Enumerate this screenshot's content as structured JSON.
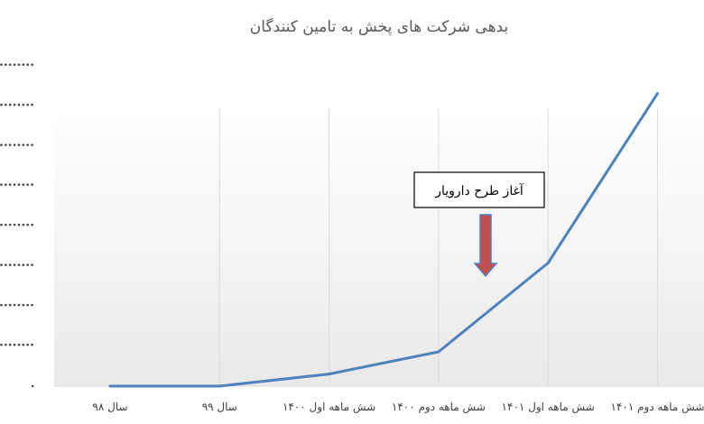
{
  "chart_data": {
    "type": "line",
    "title": "بدهی شرکت های پخش به تامین کنندگان",
    "categories": [
      "سال ۹۸",
      "سال ۹۹",
      "شش ماهه اول ۱۴۰۰",
      "شش ماهه دوم ۱۴۰۰",
      "شش ماهه اول ۱۴۰۱",
      "شش ماهه دوم ۱۴۰۱"
    ],
    "series": [
      {
        "values": [
          0,
          0,
          0.6,
          1.7,
          6.1,
          14.5
        ],
        "color": "#4f81bd"
      }
    ],
    "yticks": [
      "٠",
      "........",
      "........",
      "........",
      "........",
      "........",
      "........",
      "........",
      "........"
    ],
    "ylim": [
      0,
      16
    ],
    "grid": "vertical",
    "annotation": {
      "text": "آغاز طرح دارویار",
      "arrow_color": "#c0504d",
      "at_category": 3.35
    }
  }
}
